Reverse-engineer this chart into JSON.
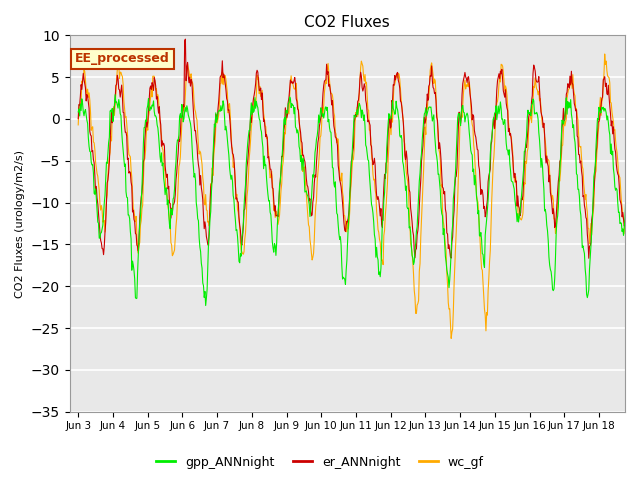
{
  "title": "CO2 Fluxes",
  "ylabel": "CO2 Fluxes (urology/m2/s)",
  "ylim": [
    -35,
    10
  ],
  "yticks": [
    -35,
    -30,
    -25,
    -20,
    -15,
    -10,
    -5,
    0,
    5,
    10
  ],
  "colors": {
    "gpp_ANNnight": "#00ee00",
    "er_ANNnight": "#cc0000",
    "wc_gf": "#ffaa00"
  },
  "legend_box_label": "EE_processed",
  "legend_box_facecolor": "#ffffcc",
  "legend_box_edgecolor": "#bb3300",
  "bg_color": "#ffffff",
  "plot_bg_color": "#e8e8e8",
  "grid_color": "#ffffff",
  "seed": 42,
  "n_days": 16,
  "pts_per_day": 48,
  "xtick_labels": [
    "Jun 3",
    "Jun 4",
    "Jun 5",
    "Jun 6",
    "Jun 7",
    "Jun 8",
    "Jun 9",
    "Jun 10",
    "Jun 11",
    "Jun 12",
    "Jun 13",
    "Jun 14",
    "Jun 15",
    "Jun 16",
    "Jun 17",
    "Jun 18"
  ]
}
